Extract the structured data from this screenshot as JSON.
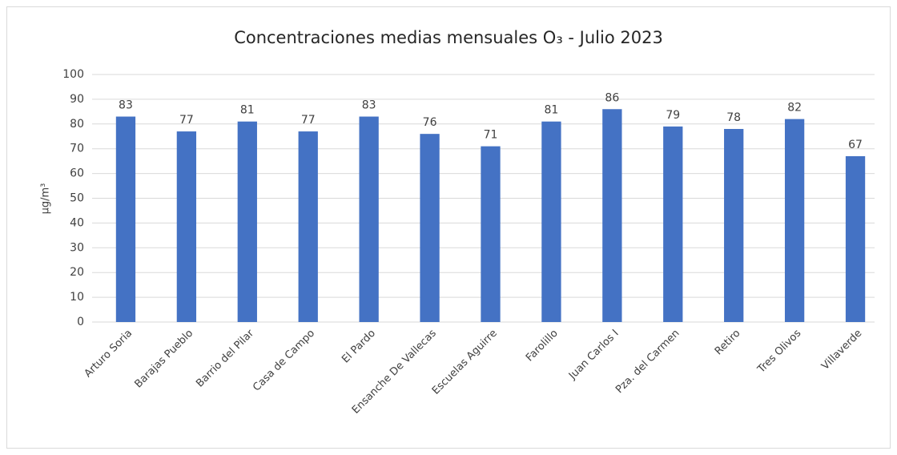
{
  "chart_data": {
    "type": "bar",
    "title": "Concentraciones medias mensuales O₃ - Julio 2023",
    "y_label": "µg/m³",
    "categories": [
      "Arturo Soria",
      "Barajas Pueblo",
      "Barrio del Pilar",
      "Casa de Campo",
      "El Pardo",
      "Ensanche De Vallecas",
      "Escuelas Aguirre",
      "Farolillo",
      "Juan Carlos I",
      "Pza. del Carmen",
      "Retiro",
      "Tres Olivos",
      "Villaverde"
    ],
    "values": [
      83,
      77,
      81,
      77,
      83,
      76,
      71,
      81,
      86,
      79,
      78,
      82,
      67
    ],
    "color": "#4472c4",
    "ylim": [
      0,
      100
    ],
    "yticks": [
      0,
      10,
      20,
      30,
      40,
      50,
      60,
      70,
      80,
      90,
      100
    ],
    "grid": true,
    "data_labels": true
  }
}
